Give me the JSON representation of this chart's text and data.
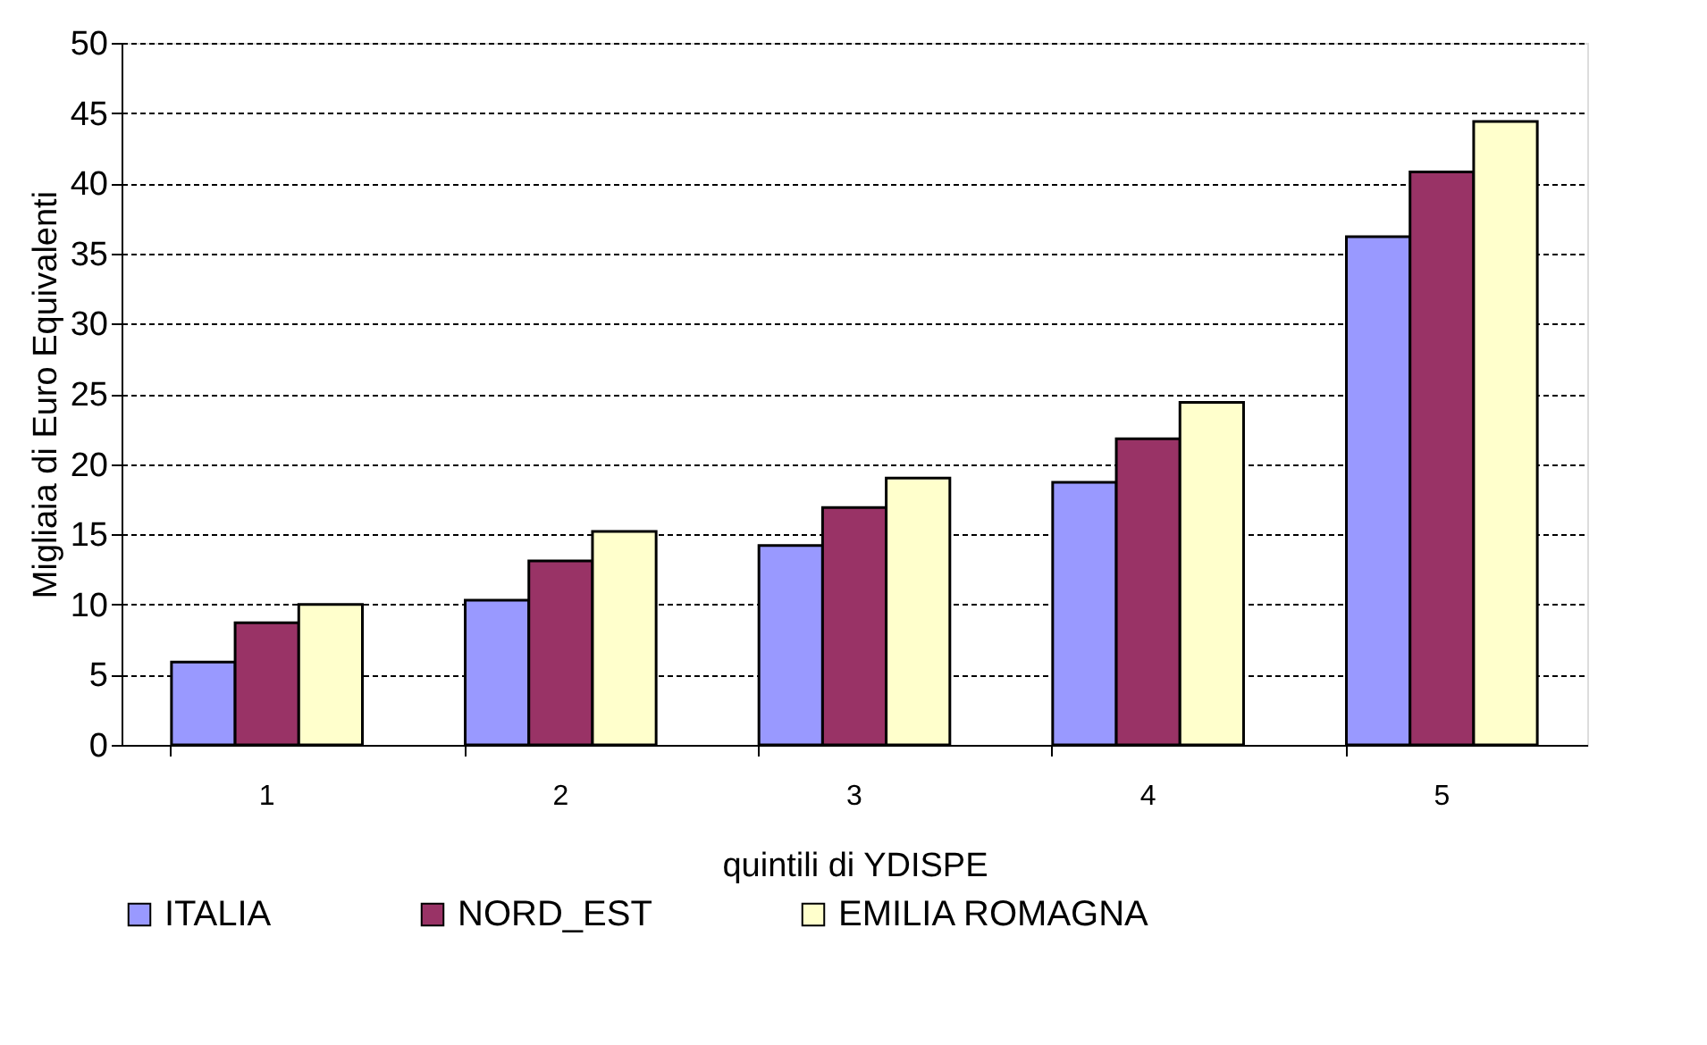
{
  "chart_data": {
    "type": "bar",
    "xlabel": "quintili di YDISPE",
    "ylabel": "Migliaia di Euro Equivalenti",
    "categories": [
      "1",
      "2",
      "3",
      "4",
      "5"
    ],
    "series": [
      {
        "name": "ITALIA",
        "color": "#9999ff",
        "values": [
          5.9,
          10.3,
          14.2,
          18.7,
          36.2
        ]
      },
      {
        "name": "NORD_EST",
        "color": "#993366",
        "values": [
          8.7,
          13.1,
          16.9,
          21.8,
          40.8
        ]
      },
      {
        "name": "EMILIA ROMAGNA",
        "color": "#ffffcc",
        "values": [
          10.0,
          15.2,
          19.0,
          24.4,
          44.4
        ]
      }
    ],
    "ylim": [
      0,
      50
    ],
    "yticks": [
      0,
      5,
      10,
      15,
      20,
      25,
      30,
      35,
      40,
      45,
      50
    ],
    "grid": "y",
    "legend": "bottom"
  }
}
